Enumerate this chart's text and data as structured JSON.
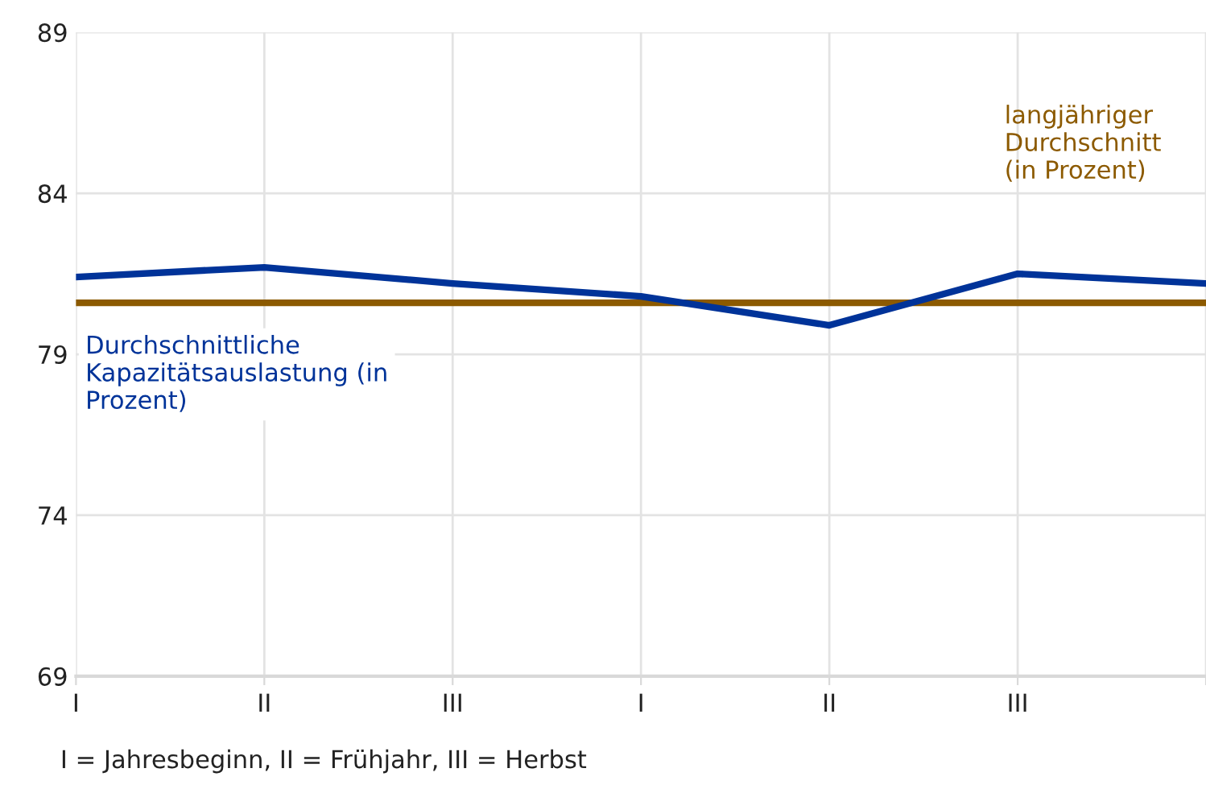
{
  "chart_data": {
    "type": "line",
    "categories": [
      "I",
      "II",
      "III",
      "I",
      "II",
      "III",
      null
    ],
    "series": [
      {
        "name": "Durchschnittliche Kapazitätsauslastung (in Prozent)",
        "color": "#003399",
        "values": [
          81.4,
          81.7,
          81.2,
          80.8,
          79.9,
          81.5,
          81.2
        ]
      }
    ],
    "ref_lines": [
      {
        "axis": "y",
        "value": 80.6,
        "label": "langjähriger Durchschnitt (in Prozent)",
        "color": "#8c5a00"
      }
    ],
    "ylim": [
      69,
      89
    ],
    "yticks": [
      69,
      74,
      79,
      84,
      89
    ],
    "grid": true,
    "legend": false,
    "marker": "none",
    "line_style": "solid",
    "annotations": [
      "I = Jahresbeginn, II = Frühjahr, III = Herbst"
    ]
  }
}
